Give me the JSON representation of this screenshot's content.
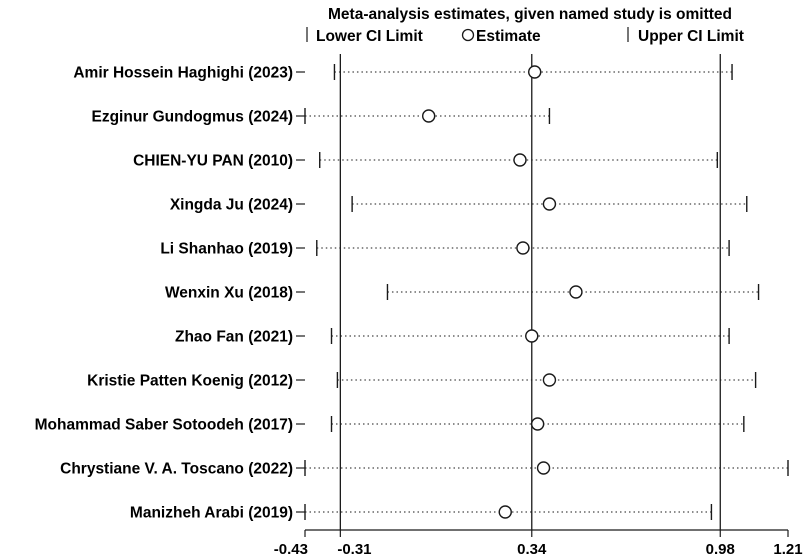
{
  "chart_data": {
    "type": "forest",
    "title": "Meta-analysis estimates, given named study is omitted",
    "legend": {
      "lower": "Lower CI Limit",
      "estimate": "Estimate",
      "upper": "Upper CI Limit"
    },
    "xlim": [
      -0.43,
      1.21
    ],
    "x_ticks": [
      {
        "value": -0.43,
        "label": "-0.43"
      },
      {
        "value": -0.31,
        "label": "-0.31"
      },
      {
        "value": 0.34,
        "label": "0.34"
      },
      {
        "value": 0.98,
        "label": "0.98"
      },
      {
        "value": 1.21,
        "label": "1.21"
      }
    ],
    "reference_lines": [
      -0.31,
      0.34,
      0.98
    ],
    "studies": [
      {
        "name": "Amir Hossein Haghighi (2023)",
        "lower": -0.33,
        "estimate": 0.35,
        "upper": 1.02
      },
      {
        "name": "Ezginur Gundogmus (2024)",
        "lower": -0.43,
        "estimate": -0.01,
        "upper": 0.4
      },
      {
        "name": "CHIEN-YU PAN (2010)",
        "lower": -0.38,
        "estimate": 0.3,
        "upper": 0.97
      },
      {
        "name": "Xingda Ju (2024)",
        "lower": -0.27,
        "estimate": 0.4,
        "upper": 1.07
      },
      {
        "name": "Li Shanhao (2019)",
        "lower": -0.39,
        "estimate": 0.31,
        "upper": 1.01
      },
      {
        "name": "Wenxin Xu (2018)",
        "lower": -0.15,
        "estimate": 0.49,
        "upper": 1.11
      },
      {
        "name": "Zhao Fan (2021)",
        "lower": -0.34,
        "estimate": 0.34,
        "upper": 1.01
      },
      {
        "name": "Kristie Patten Koenig (2012)",
        "lower": -0.32,
        "estimate": 0.4,
        "upper": 1.1
      },
      {
        "name": "Mohammad Saber Sotoodeh (2017)",
        "lower": -0.34,
        "estimate": 0.36,
        "upper": 1.06
      },
      {
        "name": "Chrystiane V. A. Toscano (2022)",
        "lower": -0.43,
        "estimate": 0.38,
        "upper": 1.21
      },
      {
        "name": "Manizheh Arabi (2019)",
        "lower": -0.43,
        "estimate": 0.25,
        "upper": 0.95
      }
    ]
  }
}
